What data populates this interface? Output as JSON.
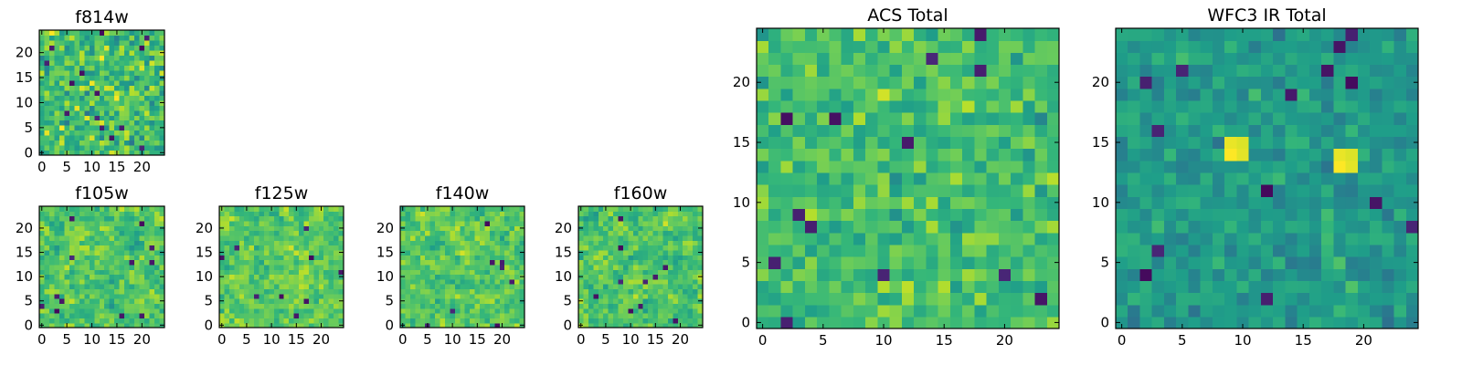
{
  "chart_data": [
    {
      "id": "f814w",
      "type": "heatmap",
      "title": "f814w",
      "grid_size": 25,
      "colormap": "viridis",
      "xlim": [
        -0.5,
        24.5
      ],
      "ylim": [
        -0.5,
        24.5
      ],
      "xticks": [
        0,
        5,
        10,
        15,
        20
      ],
      "yticks": [
        0,
        5,
        10,
        15,
        20
      ],
      "xticklabels": [
        "0",
        "5",
        "10",
        "15",
        "20"
      ],
      "yticklabels": [
        "0",
        "5",
        "10",
        "15",
        "20"
      ],
      "value_range": [
        0,
        1
      ],
      "mean_value": 0.7,
      "value_spread": 0.22,
      "smoothing": 0,
      "dark_pixel_count": 14,
      "bright_blob_count": 0,
      "seed": 814
    },
    {
      "id": "f105w",
      "type": "heatmap",
      "title": "f105w",
      "grid_size": 25,
      "colormap": "viridis",
      "xlim": [
        -0.5,
        24.5
      ],
      "ylim": [
        -0.5,
        24.5
      ],
      "xticks": [
        0,
        5,
        10,
        15,
        20
      ],
      "yticks": [
        0,
        5,
        10,
        15,
        20
      ],
      "xticklabels": [
        "0",
        "5",
        "10",
        "15",
        "20"
      ],
      "yticklabels": [
        "0",
        "5",
        "10",
        "15",
        "20"
      ],
      "value_range": [
        0,
        1
      ],
      "mean_value": 0.72,
      "value_spread": 0.22,
      "smoothing": 1,
      "dark_pixel_count": 12,
      "bright_blob_count": 0,
      "seed": 105
    },
    {
      "id": "f125w",
      "type": "heatmap",
      "title": "f125w",
      "grid_size": 25,
      "colormap": "viridis",
      "xlim": [
        -0.5,
        24.5
      ],
      "ylim": [
        -0.5,
        24.5
      ],
      "xticks": [
        0,
        5,
        10,
        15,
        20
      ],
      "yticks": [
        0,
        5,
        10,
        15,
        20
      ],
      "xticklabels": [
        "0",
        "5",
        "10",
        "15",
        "20"
      ],
      "yticklabels": [
        "0",
        "5",
        "10",
        "15",
        "20"
      ],
      "value_range": [
        0,
        1
      ],
      "mean_value": 0.75,
      "value_spread": 0.2,
      "smoothing": 1,
      "dark_pixel_count": 9,
      "bright_blob_count": 0,
      "seed": 125
    },
    {
      "id": "f140w",
      "type": "heatmap",
      "title": "f140w",
      "grid_size": 25,
      "colormap": "viridis",
      "xlim": [
        -0.5,
        24.5
      ],
      "ylim": [
        -0.5,
        24.5
      ],
      "xticks": [
        0,
        5,
        10,
        15,
        20
      ],
      "yticks": [
        0,
        5,
        10,
        15,
        20
      ],
      "xticklabels": [
        "0",
        "5",
        "10",
        "15",
        "20"
      ],
      "yticklabels": [
        "0",
        "5",
        "10",
        "15",
        "20"
      ],
      "value_range": [
        0,
        1
      ],
      "mean_value": 0.74,
      "value_spread": 0.21,
      "smoothing": 1,
      "dark_pixel_count": 8,
      "bright_blob_count": 0,
      "seed": 140
    },
    {
      "id": "f160w",
      "type": "heatmap",
      "title": "f160w",
      "grid_size": 25,
      "colormap": "viridis",
      "xlim": [
        -0.5,
        24.5
      ],
      "ylim": [
        -0.5,
        24.5
      ],
      "xticks": [
        0,
        5,
        10,
        15,
        20
      ],
      "yticks": [
        0,
        5,
        10,
        15,
        20
      ],
      "xticklabels": [
        "0",
        "5",
        "10",
        "15",
        "20"
      ],
      "yticklabels": [
        "0",
        "5",
        "10",
        "15",
        "20"
      ],
      "value_range": [
        0,
        1
      ],
      "mean_value": 0.72,
      "value_spread": 0.22,
      "smoothing": 1,
      "dark_pixel_count": 10,
      "bright_blob_count": 0,
      "seed": 160
    },
    {
      "id": "acs-total",
      "type": "heatmap",
      "title": "ACS Total",
      "grid_size": 25,
      "colormap": "viridis",
      "xlim": [
        -0.5,
        24.5
      ],
      "ylim": [
        -0.5,
        24.5
      ],
      "xticks": [
        0,
        5,
        10,
        15,
        20
      ],
      "yticks": [
        0,
        5,
        10,
        15,
        20
      ],
      "xticklabels": [
        "0",
        "5",
        "10",
        "15",
        "20"
      ],
      "yticklabels": [
        "0",
        "5",
        "10",
        "15",
        "20"
      ],
      "value_range": [
        0,
        1
      ],
      "mean_value": 0.7,
      "value_spread": 0.16,
      "smoothing": 0,
      "dark_pixel_count": 13,
      "bright_blob_count": 0,
      "seed": 2001
    },
    {
      "id": "wfc3-ir-total",
      "type": "heatmap",
      "title": "WFC3 IR Total",
      "grid_size": 25,
      "colormap": "viridis",
      "xlim": [
        -0.5,
        24.5
      ],
      "ylim": [
        -0.5,
        24.5
      ],
      "xticks": [
        0,
        5,
        10,
        15,
        20
      ],
      "yticks": [
        0,
        5,
        10,
        15,
        20
      ],
      "xticklabels": [
        "0",
        "5",
        "10",
        "15",
        "20"
      ],
      "yticklabels": [
        "0",
        "5",
        "10",
        "15",
        "20"
      ],
      "value_range": [
        0,
        1
      ],
      "mean_value": 0.54,
      "value_spread": 0.12,
      "smoothing": 0,
      "dark_pixel_count": 14,
      "bright_blob_count": 2,
      "seed": 3001
    }
  ]
}
